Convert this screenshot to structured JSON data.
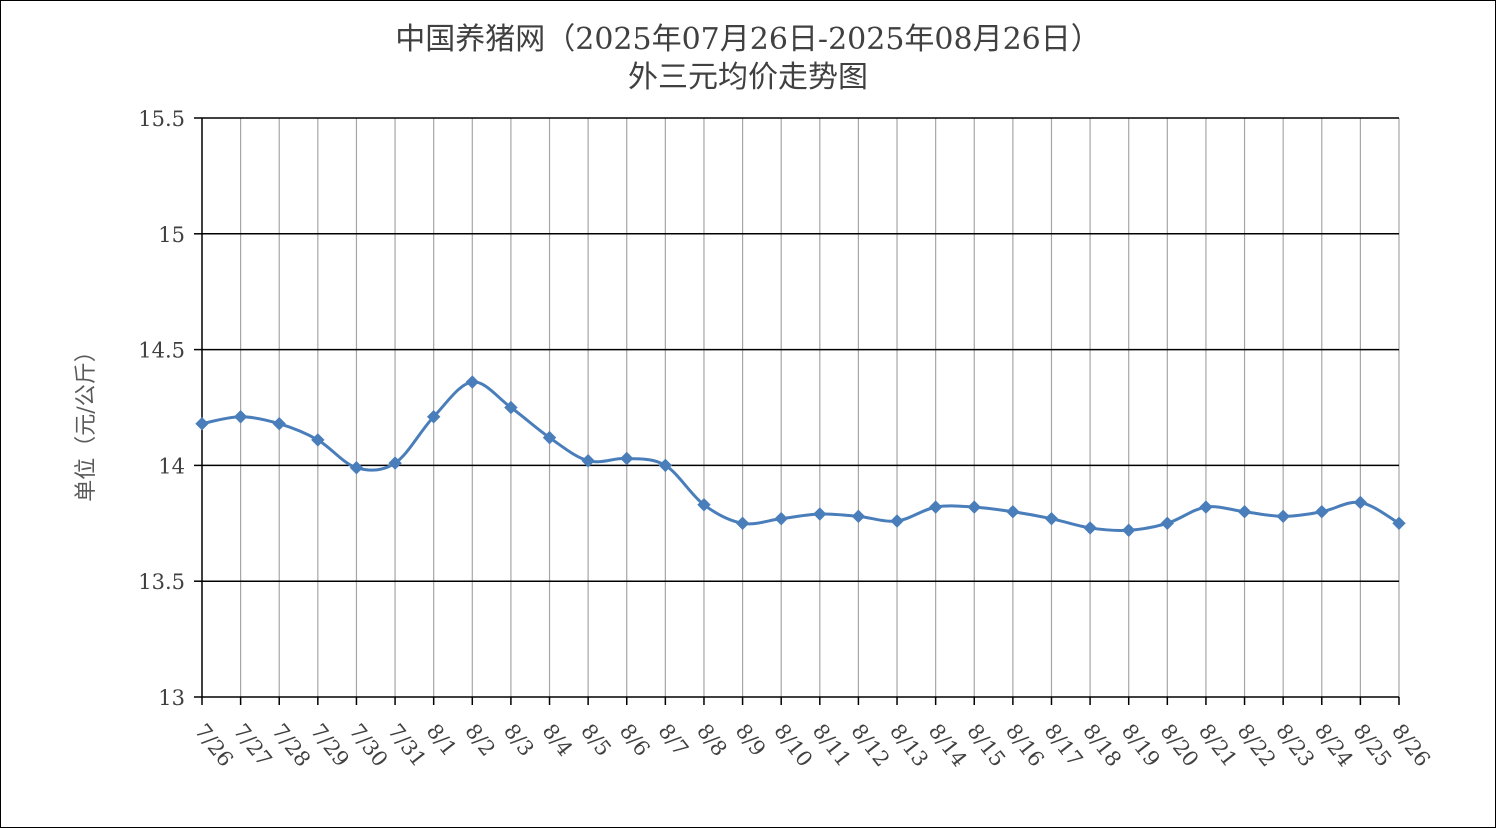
{
  "chart_data": {
    "type": "line",
    "title": "中国养猪网（2025年07月26日-2025年08月26日）",
    "subtitle": "外三元均价走势图",
    "xlabel": "",
    "ylabel": "单位（元/公斤）",
    "ylim": [
      13,
      15.5
    ],
    "yticks": [
      13,
      13.5,
      14,
      14.5,
      15,
      15.5
    ],
    "ytick_labels": [
      "13",
      "13.5",
      "14",
      "14.5",
      "15",
      "15.5"
    ],
    "grid": "on",
    "legend": "none",
    "categories": [
      "7/26",
      "7/27",
      "7/28",
      "7/29",
      "7/30",
      "7/31",
      "8/1",
      "8/2",
      "8/3",
      "8/4",
      "8/5",
      "8/6",
      "8/7",
      "8/8",
      "8/9",
      "8/10",
      "8/11",
      "8/12",
      "8/13",
      "8/14",
      "8/15",
      "8/16",
      "8/17",
      "8/18",
      "8/19",
      "8/20",
      "8/21",
      "8/22",
      "8/23",
      "8/24",
      "8/25",
      "8/26"
    ],
    "series": [
      {
        "values": [
          14.18,
          14.21,
          14.18,
          14.11,
          13.99,
          14.01,
          14.21,
          14.36,
          14.25,
          14.12,
          14.02,
          14.03,
          14.0,
          13.83,
          13.75,
          13.77,
          13.79,
          13.78,
          13.76,
          13.82,
          13.82,
          13.8,
          13.77,
          13.73,
          13.72,
          13.75,
          13.82,
          13.8,
          13.78,
          13.8,
          13.84,
          13.75
        ],
        "color": "#4A7EBB",
        "marker": "diamond"
      }
    ]
  }
}
